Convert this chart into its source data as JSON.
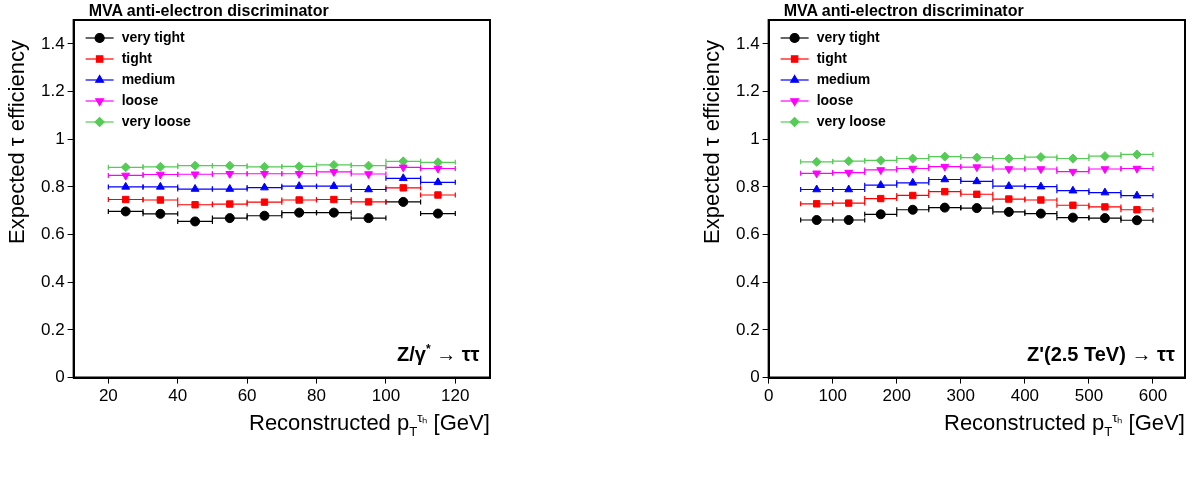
{
  "chart_data": [
    {
      "type": "scatter",
      "title": "MVA anti-electron discriminator",
      "xlabel": "Reconstructed p$_{T}$$^{τₕ}$ [GeV]",
      "ylabel": "Expected τ efficiency",
      "annotations": [
        "Z/γ$^{*}$ → ττ"
      ],
      "xlim": [
        10,
        130
      ],
      "xticks": [
        20,
        40,
        60,
        80,
        100,
        120
      ],
      "ylim": [
        0,
        1.5
      ],
      "yticks": [
        0,
        0.2,
        0.4,
        0.6,
        0.8,
        1,
        1.2,
        1.4
      ],
      "grid": false,
      "legend": "top left",
      "x": [
        25,
        35,
        45,
        55,
        65,
        75,
        85,
        95,
        105,
        115
      ],
      "series": [
        {
          "name": "very tight",
          "color": "#000000",
          "marker": "circle",
          "xerrors": [
            5,
            5,
            5,
            5,
            5,
            5,
            5,
            5,
            5,
            5
          ],
          "values": [
            0.697,
            0.687,
            0.655,
            0.669,
            0.679,
            0.692,
            0.692,
            0.669,
            0.737,
            0.688
          ]
        },
        {
          "name": "tight",
          "color": "#ff0000",
          "marker": "square",
          "xerrors": [
            5,
            5,
            5,
            5,
            5,
            5,
            5,
            5,
            5,
            5
          ],
          "values": [
            0.747,
            0.745,
            0.725,
            0.728,
            0.736,
            0.745,
            0.747,
            0.737,
            0.796,
            0.766
          ]
        },
        {
          "name": "medium",
          "color": "#0000ff",
          "marker": "triangle",
          "xerrors": [
            5,
            5,
            5,
            5,
            5,
            5,
            5,
            5,
            5,
            5
          ],
          "values": [
            0.8,
            0.8,
            0.791,
            0.791,
            0.797,
            0.803,
            0.803,
            0.789,
            0.836,
            0.819
          ]
        },
        {
          "name": "loose",
          "color": "#ff00ff",
          "marker": "triangle_down",
          "xerrors": [
            5,
            5,
            5,
            5,
            5,
            5,
            5,
            5,
            5,
            5
          ],
          "values": [
            0.848,
            0.852,
            0.853,
            0.855,
            0.855,
            0.855,
            0.863,
            0.854,
            0.882,
            0.877
          ]
        },
        {
          "name": "very loose",
          "color": "#55cc55",
          "marker": "diamond",
          "xerrors": [
            5,
            5,
            5,
            5,
            5,
            5,
            5,
            5,
            5,
            5
          ],
          "values": [
            0.882,
            0.884,
            0.889,
            0.889,
            0.884,
            0.886,
            0.892,
            0.889,
            0.907,
            0.903
          ]
        }
      ]
    },
    {
      "type": "scatter",
      "title": "MVA anti-electron discriminator",
      "xlabel": "Reconstructed p$_{T}$$^{τₕ}$ [GeV]",
      "ylabel": "Expected τ efficiency",
      "annotations": [
        "Z'(2.5 TeV) → ττ"
      ],
      "xlim": [
        0,
        650
      ],
      "xticks": [
        0,
        100,
        200,
        300,
        400,
        500,
        600
      ],
      "ylim": [
        0,
        1.5
      ],
      "yticks": [
        0,
        0.2,
        0.4,
        0.6,
        0.8,
        1,
        1.2,
        1.4
      ],
      "grid": false,
      "legend": "top left",
      "x": [
        75,
        125,
        175,
        225,
        275,
        325,
        375,
        425,
        475,
        525,
        575
      ],
      "series": [
        {
          "name": "very tight",
          "color": "#000000",
          "marker": "circle",
          "xerrors": [
            25,
            25,
            25,
            25,
            25,
            25,
            25,
            25,
            25,
            25,
            25
          ],
          "values": [
            0.661,
            0.661,
            0.685,
            0.704,
            0.713,
            0.711,
            0.695,
            0.688,
            0.671,
            0.669,
            0.66
          ]
        },
        {
          "name": "tight",
          "color": "#ff0000",
          "marker": "square",
          "xerrors": [
            25,
            25,
            25,
            25,
            25,
            25,
            25,
            25,
            25,
            25,
            25
          ],
          "values": [
            0.729,
            0.732,
            0.751,
            0.764,
            0.78,
            0.769,
            0.749,
            0.745,
            0.723,
            0.716,
            0.704
          ]
        },
        {
          "name": "medium",
          "color": "#0000ff",
          "marker": "triangle",
          "xerrors": [
            25,
            25,
            25,
            25,
            25,
            25,
            25,
            25,
            25,
            25,
            25
          ],
          "values": [
            0.789,
            0.789,
            0.807,
            0.817,
            0.831,
            0.823,
            0.803,
            0.801,
            0.784,
            0.776,
            0.763
          ]
        },
        {
          "name": "loose",
          "color": "#ff00ff",
          "marker": "triangle_down",
          "xerrors": [
            25,
            25,
            25,
            25,
            25,
            25,
            25,
            25,
            25,
            25,
            25
          ],
          "values": [
            0.857,
            0.86,
            0.871,
            0.877,
            0.885,
            0.883,
            0.875,
            0.875,
            0.864,
            0.875,
            0.877
          ]
        },
        {
          "name": "very loose",
          "color": "#55cc55",
          "marker": "diamond",
          "xerrors": [
            25,
            25,
            25,
            25,
            25,
            25,
            25,
            25,
            25,
            25,
            25
          ],
          "values": [
            0.905,
            0.908,
            0.911,
            0.919,
            0.927,
            0.923,
            0.919,
            0.925,
            0.919,
            0.929,
            0.936
          ]
        }
      ]
    }
  ]
}
